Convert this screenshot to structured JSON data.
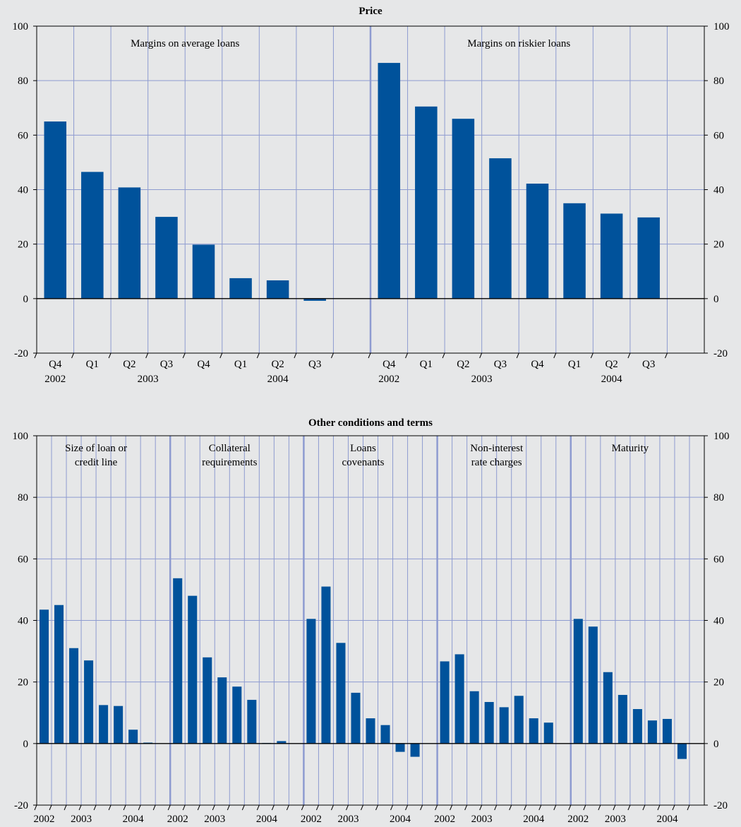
{
  "colors": {
    "background": "#e6e7e8",
    "bar": "#00529b",
    "grid": "#8e9bd0",
    "axis": "#000000"
  },
  "chart_data": [
    {
      "type": "bar",
      "title": "Price",
      "ylim": [
        -20,
        100
      ],
      "yticks": [
        -20,
        0,
        20,
        40,
        60,
        80,
        100
      ],
      "grid": true,
      "panels": [
        {
          "label_lines": [
            "Margins on average loans"
          ],
          "categories": [
            "Q4",
            "Q1",
            "Q2",
            "Q3",
            "Q4",
            "Q1",
            "Q2",
            "Q3"
          ],
          "year_labels": [
            {
              "label": "2002",
              "index": 0
            },
            {
              "label": "2003",
              "index": 2.5
            },
            {
              "label": "2004",
              "index": 6
            }
          ],
          "values": [
            65,
            46.5,
            40.8,
            30,
            19.8,
            7.5,
            6.7,
            -0.8
          ]
        },
        {
          "label_lines": [
            "Margins on riskier loans"
          ],
          "categories": [
            "Q4",
            "Q1",
            "Q2",
            "Q3",
            "Q4",
            "Q1",
            "Q2",
            "Q3"
          ],
          "year_labels": [
            {
              "label": "2002",
              "index": 0
            },
            {
              "label": "2003",
              "index": 2.5
            },
            {
              "label": "2004",
              "index": 6
            }
          ],
          "values": [
            86.5,
            70.5,
            66,
            51.5,
            42.2,
            35,
            31.2,
            29.8
          ]
        }
      ]
    },
    {
      "type": "bar",
      "title": "Other conditions and terms",
      "ylim": [
        -20,
        100
      ],
      "yticks": [
        -20,
        0,
        20,
        40,
        60,
        80,
        100
      ],
      "grid": true,
      "panels": [
        {
          "label_lines": [
            "Size of loan or",
            "credit line"
          ],
          "year_labels": [
            {
              "label": "2002",
              "index": 0
            },
            {
              "label": "2003",
              "index": 2.5
            },
            {
              "label": "2004",
              "index": 6
            }
          ],
          "values": [
            43.5,
            45,
            31,
            27,
            12.5,
            12.2,
            4.5,
            0.3
          ]
        },
        {
          "label_lines": [
            "Collateral",
            "requirements"
          ],
          "year_labels": [
            {
              "label": "2002",
              "index": 0
            },
            {
              "label": "2003",
              "index": 2.5
            },
            {
              "label": "2004",
              "index": 6
            }
          ],
          "values": [
            53.7,
            48,
            28,
            21.5,
            18.5,
            14.2,
            0.2,
            0.8
          ]
        },
        {
          "label_lines": [
            "Loans",
            "covenants"
          ],
          "year_labels": [
            {
              "label": "2002",
              "index": 0
            },
            {
              "label": "2003",
              "index": 2.5
            },
            {
              "label": "2004",
              "index": 6
            }
          ],
          "values": [
            40.5,
            51,
            32.7,
            16.5,
            8.2,
            6,
            -2.7,
            -4.3
          ]
        },
        {
          "label_lines": [
            "Non-interest",
            "rate charges"
          ],
          "year_labels": [
            {
              "label": "2002",
              "index": 0
            },
            {
              "label": "2003",
              "index": 2.5
            },
            {
              "label": "2004",
              "index": 6
            }
          ],
          "values": [
            26.7,
            29,
            17,
            13.5,
            11.8,
            15.5,
            8.2,
            6.8
          ]
        },
        {
          "label_lines": [
            "Maturity"
          ],
          "year_labels": [
            {
              "label": "2002",
              "index": 0
            },
            {
              "label": "2003",
              "index": 2.5
            },
            {
              "label": "2004",
              "index": 6
            }
          ],
          "values": [
            40.5,
            38,
            23.2,
            15.8,
            11.2,
            7.5,
            8,
            -5
          ]
        }
      ]
    }
  ]
}
